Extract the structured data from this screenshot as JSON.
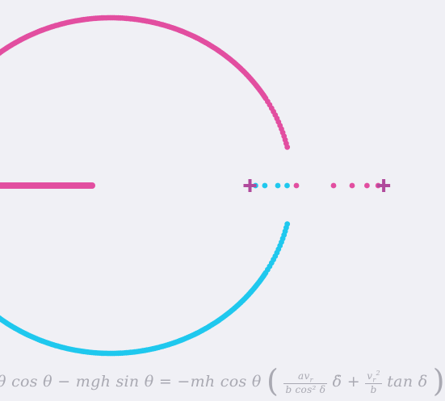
{
  "equation": "θ cos θ − mgh sin θ = −mh cos θ ( av_r / (b cos² δ) δ̇ + v_r² / b tan δ )",
  "colors": {
    "background": "#f0f0f5",
    "magenta": "#e24ea0",
    "cyan": "#1fc8ee",
    "cross": "#b04a9c",
    "equation": "#a9a9b2"
  },
  "chart_data": {
    "type": "scatter",
    "description_free": true,
    "real_axis_range": [
      -1.4,
      1.5
    ],
    "imag_axis_range": [
      -1.0,
      1.0
    ],
    "crosses": [
      {
        "re": 0.75,
        "im": 0.0
      },
      {
        "re": 1.47,
        "im": 0.0
      }
    ],
    "magenta_axis_points": [
      -1.5,
      -1.35,
      -1.2,
      -1.05,
      -0.9,
      -0.75,
      -0.55,
      -0.35,
      -0.2
    ],
    "magenta_real_points": [
      1.0,
      1.2,
      1.3,
      1.38,
      1.44
    ],
    "cyan_real_points": [
      0.78,
      0.83,
      0.9,
      0.95
    ]
  }
}
